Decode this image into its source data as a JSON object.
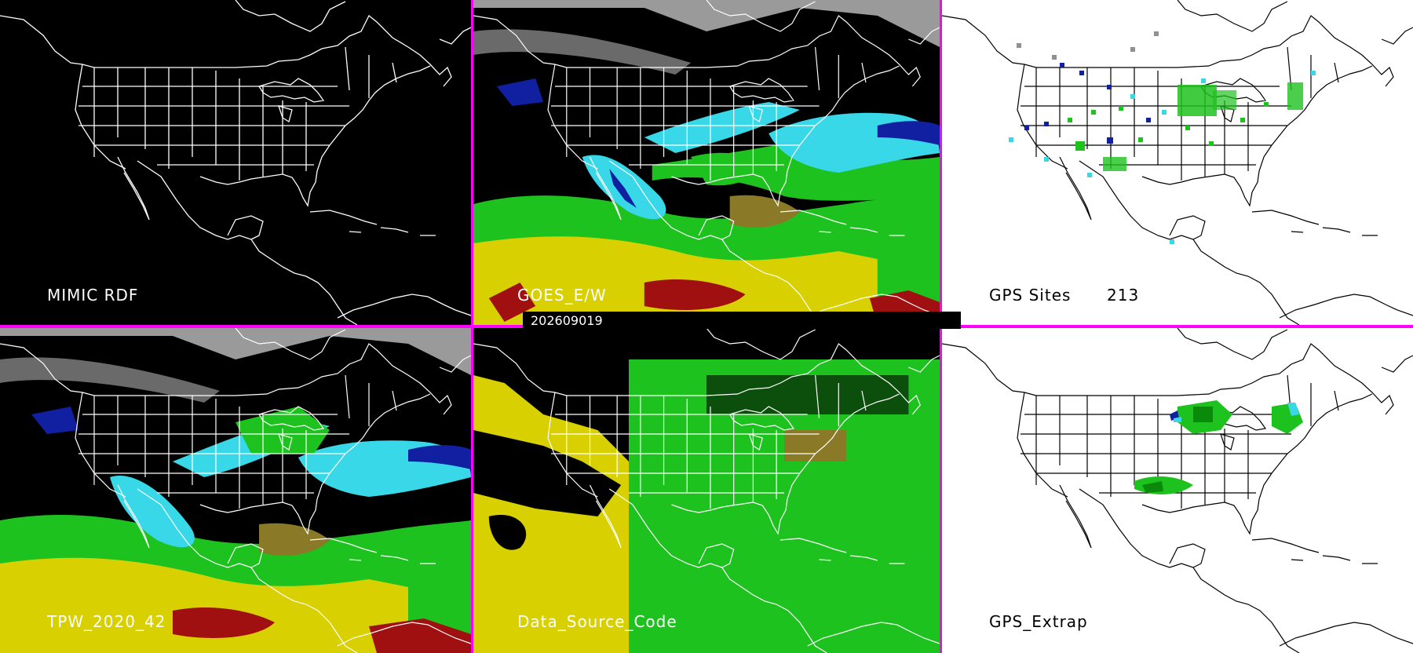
{
  "panels": {
    "mimic_rdf": {
      "label": "MIMIC RDF"
    },
    "goes_ew": {
      "label": "GOES_E/W"
    },
    "gps_sites": {
      "label": "GPS Sites",
      "count": "213"
    },
    "tpw": {
      "label": "TPW_2020_42"
    },
    "data_source_code": {
      "label": "Data_Source_Code"
    },
    "gps_extrap": {
      "label": "GPS_Extrap"
    }
  },
  "timestamp": "202609019",
  "colors": {
    "divider": "#ff00ff",
    "map_dark_bg": "#000000",
    "map_light_bg": "#ffffff",
    "yellow": "#d8d000",
    "olive": "#8a7a28",
    "green": "#1ec21e",
    "cyan": "#38d8e8",
    "blue": "#1020a0",
    "red": "#a01010",
    "gray": "#909090"
  }
}
